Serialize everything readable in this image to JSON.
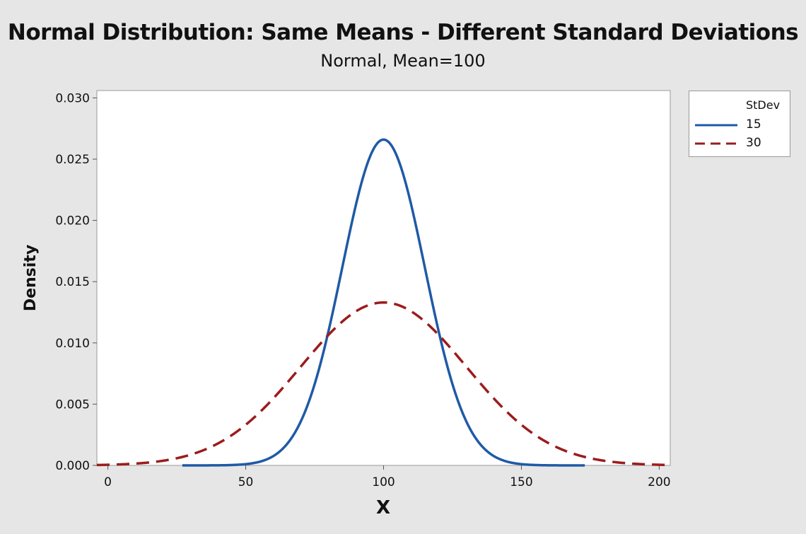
{
  "chart_data": {
    "type": "line",
    "title": "Normal Distribution: Same Means - Different Standard Deviations",
    "subtitle": "Normal, Mean=100",
    "xlabel": "X",
    "ylabel": "Density",
    "xlim": [
      -4,
      204
    ],
    "ylim": [
      0,
      0.0306
    ],
    "xticks": [
      0,
      50,
      100,
      150,
      200
    ],
    "xtick_labels": [
      "0",
      "50",
      "100",
      "150",
      "200"
    ],
    "yticks": [
      0.0,
      0.005,
      0.01,
      0.015,
      0.02,
      0.025,
      0.03
    ],
    "ytick_labels": [
      "0.000",
      "0.005",
      "0.010",
      "0.015",
      "0.020",
      "0.025",
      "0.030"
    ],
    "grid": false,
    "legend": {
      "title": "StDev",
      "placement": "right-top, outside plot",
      "entries": [
        "15",
        "30"
      ]
    },
    "mean": 100,
    "series": [
      {
        "name": "15",
        "stdev": 15,
        "x_range": [
          27,
          173
        ],
        "color": "#1f5aa6",
        "style": "solid",
        "peak_density": 0.0266
      },
      {
        "name": "30",
        "stdev": 30,
        "x_range": [
          -4,
          204
        ],
        "color": "#9b1c1c",
        "style": "dashed",
        "peak_density": 0.0133
      }
    ]
  }
}
